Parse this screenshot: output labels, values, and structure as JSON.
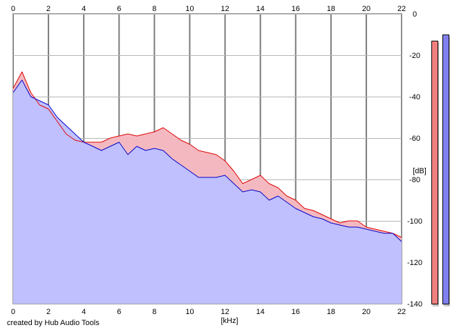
{
  "chart_data": {
    "type": "area",
    "xlabel": "[kHz]",
    "ylabel": "[dB]",
    "xlim": [
      0,
      22
    ],
    "ylim": [
      -140,
      0
    ],
    "x_ticks": [
      "0",
      "2",
      "4",
      "6",
      "8",
      "10",
      "12",
      "14",
      "16",
      "18",
      "20",
      "22"
    ],
    "y_ticks": [
      "0",
      "-20",
      "-40",
      "-60",
      "-80",
      "-100",
      "-120",
      "-140"
    ],
    "grid": true,
    "x": [
      0,
      0.5,
      1,
      1.5,
      2,
      2.5,
      3,
      3.5,
      4,
      4.5,
      5,
      5.5,
      6,
      6.5,
      7,
      7.5,
      8,
      8.5,
      9,
      9.5,
      10,
      10.5,
      11,
      11.5,
      12,
      12.5,
      13,
      13.5,
      14,
      14.5,
      15,
      15.5,
      16,
      16.5,
      17,
      17.5,
      18,
      18.5,
      19,
      19.5,
      20,
      20.5,
      21,
      21.5,
      22
    ],
    "series": [
      {
        "color": "#e00000",
        "fill": "#f4b9c0",
        "values": [
          -36,
          -28,
          -38,
          -44,
          -46,
          -52,
          -58,
          -61,
          -62,
          -62,
          -62,
          -60,
          -59,
          -58,
          -59,
          -58,
          -57,
          -55,
          -58,
          -61,
          -63,
          -66,
          -67,
          -68,
          -71,
          -76,
          -82,
          -80,
          -78,
          -82,
          -84,
          -88,
          -90,
          -94,
          -95,
          -97,
          -99,
          -101,
          -100,
          -100,
          -103,
          -104,
          -105,
          -106,
          -108
        ]
      },
      {
        "color": "#0000c8",
        "fill": "#c0c0ff",
        "values": [
          -38,
          -32,
          -40,
          -42,
          -44,
          -50,
          -54,
          -58,
          -62,
          -64,
          -66,
          -64,
          -62,
          -68,
          -64,
          -66,
          -65,
          -66,
          -70,
          -73,
          -76,
          -79,
          -79,
          -79,
          -78,
          -82,
          -86,
          -85,
          -86,
          -90,
          -88,
          -91,
          -94,
          -96,
          -98,
          -99,
          -101,
          -102,
          -103,
          -103,
          -104,
          -105,
          -106,
          -106,
          -110
        ]
      }
    ],
    "level_meters": [
      {
        "color": "#f08080",
        "value": -13
      },
      {
        "color": "#8080f0",
        "value": -10
      }
    ]
  },
  "footer": {
    "credit": "created by Hub Audio Tools"
  }
}
